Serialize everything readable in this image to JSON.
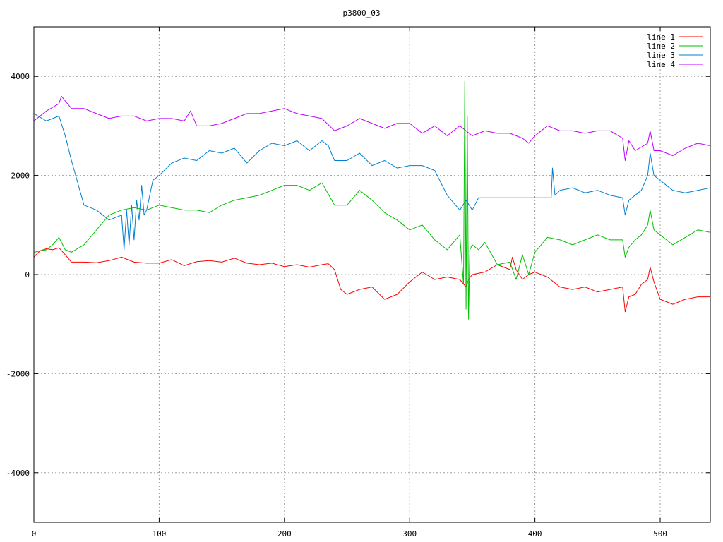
{
  "chart_data": {
    "type": "line",
    "title": "p3800_03",
    "xlabel": "",
    "ylabel": "",
    "xlim": [
      0,
      540
    ],
    "ylim": [
      -5000,
      5000
    ],
    "x_ticks": [
      0,
      100,
      200,
      300,
      400,
      500
    ],
    "y_ticks": [
      -4000,
      -2000,
      0,
      2000,
      4000
    ],
    "x_tick_labels": [
      "0",
      "100",
      "200",
      "300",
      "400",
      "500"
    ],
    "y_tick_labels": [
      "-4000",
      "-2000",
      "0",
      "2000",
      "4000"
    ],
    "grid": true,
    "legend_position": "top-right",
    "series": [
      {
        "name": "line 1",
        "color": "#ff0000",
        "x": [
          0,
          5,
          10,
          15,
          20,
          25,
          30,
          40,
          50,
          60,
          70,
          80,
          90,
          100,
          110,
          120,
          130,
          140,
          150,
          160,
          170,
          180,
          190,
          200,
          210,
          220,
          230,
          235,
          240,
          245,
          250,
          260,
          270,
          280,
          290,
          300,
          310,
          320,
          330,
          340,
          345,
          347,
          350,
          360,
          370,
          380,
          382,
          385,
          390,
          395,
          400,
          410,
          420,
          430,
          440,
          450,
          460,
          470,
          472,
          475,
          480,
          485,
          490,
          492,
          495,
          500,
          510,
          520,
          530,
          540
        ],
        "y": [
          350,
          480,
          520,
          500,
          540,
          400,
          250,
          250,
          240,
          280,
          350,
          250,
          230,
          230,
          300,
          180,
          260,
          280,
          250,
          330,
          230,
          200,
          230,
          160,
          200,
          150,
          200,
          220,
          100,
          -300,
          -400,
          -300,
          -250,
          -500,
          -400,
          -150,
          50,
          -100,
          -50,
          -100,
          -250,
          -100,
          0,
          50,
          200,
          100,
          350,
          100,
          -100,
          0,
          50,
          -50,
          -250,
          -300,
          -250,
          -350,
          -300,
          -250,
          -750,
          -450,
          -400,
          -200,
          -100,
          150,
          -150,
          -500,
          -600,
          -500,
          -450,
          -450
        ]
      },
      {
        "name": "line 2",
        "color": "#00c000",
        "x": [
          0,
          10,
          15,
          20,
          25,
          30,
          40,
          50,
          60,
          70,
          80,
          90,
          100,
          110,
          120,
          130,
          140,
          150,
          160,
          170,
          180,
          190,
          200,
          210,
          220,
          230,
          240,
          250,
          260,
          270,
          280,
          290,
          300,
          310,
          320,
          330,
          340,
          343,
          344,
          345,
          346,
          347,
          348,
          350,
          355,
          360,
          370,
          380,
          385,
          390,
          395,
          400,
          410,
          420,
          430,
          440,
          450,
          460,
          470,
          472,
          475,
          480,
          485,
          490,
          492,
          495,
          500,
          510,
          520,
          530,
          540
        ],
        "y": [
          450,
          500,
          600,
          750,
          500,
          450,
          600,
          900,
          1200,
          1300,
          1350,
          1300,
          1400,
          1350,
          1300,
          1300,
          1250,
          1400,
          1500,
          1550,
          1600,
          1700,
          1800,
          1800,
          1700,
          1850,
          1400,
          1400,
          1700,
          1500,
          1250,
          1100,
          900,
          1000,
          700,
          500,
          800,
          -200,
          3900,
          -700,
          3200,
          -900,
          500,
          600,
          500,
          650,
          200,
          250,
          -100,
          400,
          0,
          450,
          750,
          700,
          600,
          700,
          800,
          700,
          700,
          350,
          550,
          700,
          800,
          1000,
          1300,
          900,
          800,
          600,
          750,
          900,
          850
        ]
      },
      {
        "name": "line 3",
        "color": "#0080d0",
        "x": [
          0,
          10,
          20,
          25,
          30,
          40,
          50,
          60,
          70,
          72,
          74,
          76,
          78,
          80,
          82,
          84,
          86,
          88,
          90,
          95,
          100,
          110,
          120,
          130,
          140,
          150,
          160,
          170,
          180,
          190,
          200,
          210,
          220,
          230,
          235,
          240,
          250,
          260,
          270,
          280,
          290,
          300,
          310,
          320,
          330,
          340,
          345,
          350,
          355,
          360,
          370,
          380,
          390,
          400,
          410,
          413,
          414,
          416,
          420,
          430,
          440,
          450,
          460,
          470,
          472,
          475,
          480,
          485,
          490,
          492,
          495,
          500,
          510,
          520,
          530,
          540
        ],
        "y": [
          3250,
          3100,
          3200,
          2800,
          2300,
          1400,
          1300,
          1100,
          1200,
          500,
          1300,
          600,
          1400,
          700,
          1500,
          1100,
          1800,
          1200,
          1300,
          1900,
          2000,
          2250,
          2350,
          2300,
          2500,
          2450,
          2550,
          2250,
          2500,
          2650,
          2600,
          2700,
          2500,
          2700,
          2600,
          2300,
          2300,
          2450,
          2200,
          2300,
          2150,
          2200,
          2200,
          2100,
          1600,
          1300,
          1500,
          1300,
          1550,
          1550,
          1550,
          1550,
          1550,
          1550,
          1550,
          1550,
          2150,
          1600,
          1700,
          1750,
          1650,
          1700,
          1600,
          1550,
          1200,
          1500,
          1600,
          1700,
          2000,
          2450,
          2000,
          1900,
          1700,
          1650,
          1700,
          1750
        ]
      },
      {
        "name": "line 4",
        "color": "#c000ff",
        "x": [
          0,
          10,
          20,
          22,
          30,
          40,
          50,
          60,
          70,
          80,
          90,
          100,
          110,
          120,
          125,
          130,
          140,
          150,
          160,
          170,
          180,
          190,
          200,
          210,
          220,
          230,
          240,
          250,
          260,
          270,
          280,
          290,
          300,
          310,
          320,
          330,
          340,
          350,
          360,
          370,
          380,
          390,
          395,
          400,
          410,
          420,
          430,
          440,
          450,
          460,
          470,
          472,
          475,
          480,
          490,
          492,
          495,
          500,
          510,
          520,
          530,
          540
        ],
        "y": [
          3100,
          3300,
          3450,
          3600,
          3350,
          3350,
          3250,
          3150,
          3200,
          3200,
          3100,
          3150,
          3150,
          3100,
          3300,
          3000,
          3000,
          3050,
          3150,
          3250,
          3250,
          3300,
          3350,
          3250,
          3200,
          3150,
          2900,
          3000,
          3150,
          3050,
          2950,
          3050,
          3050,
          2850,
          3000,
          2800,
          3000,
          2800,
          2900,
          2850,
          2850,
          2750,
          2650,
          2800,
          3000,
          2900,
          2900,
          2850,
          2900,
          2900,
          2750,
          2300,
          2700,
          2500,
          2650,
          2900,
          2500,
          2500,
          2400,
          2550,
          2650,
          2600
        ]
      }
    ]
  }
}
